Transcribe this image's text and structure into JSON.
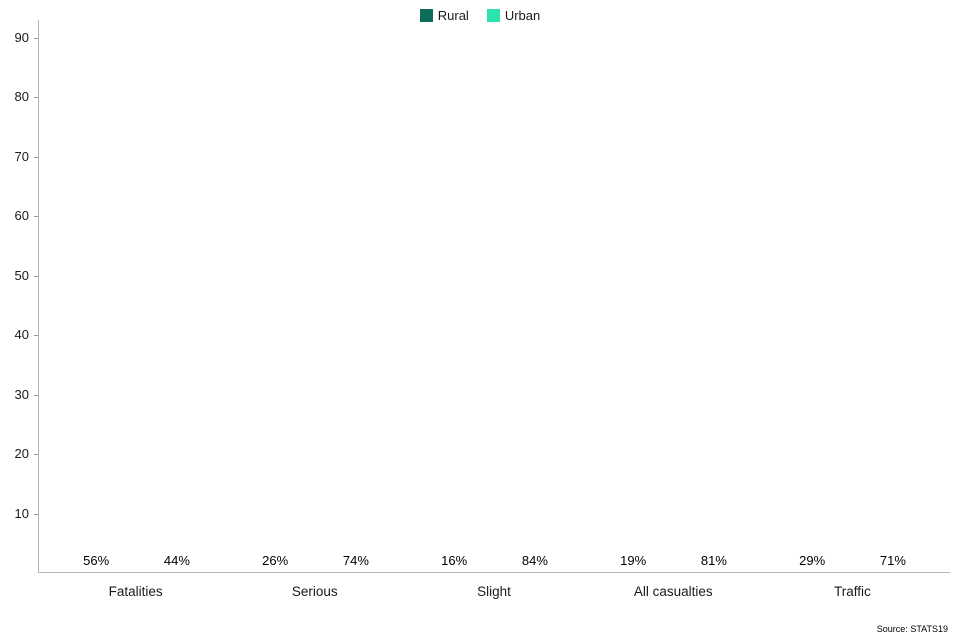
{
  "chart_data": {
    "type": "bar",
    "title": "",
    "categories": [
      "Fatalities",
      "Serious",
      "Slight",
      "All casualties",
      "Traffic"
    ],
    "series": [
      {
        "name": "Rural",
        "color": "#0e6b57",
        "values": [
          56,
          26,
          16,
          19,
          29
        ]
      },
      {
        "name": "Urban",
        "color": "#2ce3ae",
        "values": [
          44,
          74,
          84,
          81,
          71
        ]
      }
    ],
    "value_suffix": "%",
    "xlabel": "",
    "ylabel": "",
    "ylim": [
      0,
      93
    ],
    "yticks": [
      10,
      20,
      30,
      40,
      50,
      60,
      70,
      80,
      90
    ],
    "grid": false,
    "legend_position": "top-center",
    "source": "Source: STATS19"
  }
}
